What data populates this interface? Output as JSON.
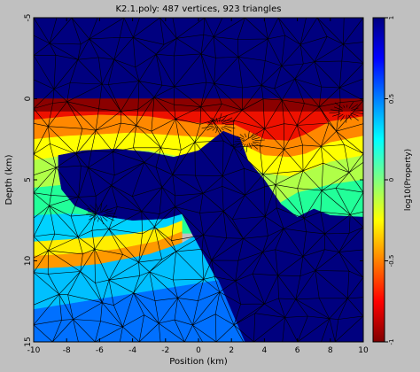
{
  "chart_data": {
    "type": "heatmap",
    "title": "K2.1.poly: 487 vertices, 923 triangles",
    "xlabel": "Position (km)",
    "ylabel": "Depth (km)",
    "xlim": [
      -10,
      10
    ],
    "ylim": [
      -5,
      15
    ],
    "y_inverted": true,
    "xticks": [
      -10,
      -8,
      -6,
      -4,
      -2,
      0,
      2,
      4,
      6,
      8,
      10
    ],
    "xtick_labels": [
      "-10",
      "-8",
      "-6",
      "-4",
      "-2",
      "0",
      "2",
      "4",
      "6",
      "8",
      "10"
    ],
    "yticks": [
      -5,
      0,
      5,
      10,
      15
    ],
    "ytick_labels": [
      "-5",
      "0",
      "5",
      "10",
      "15"
    ],
    "colorbar": {
      "label": "log10(Property)",
      "range": [
        -1,
        1
      ],
      "ticks": [
        1,
        0.5,
        0,
        -0.5,
        -1
      ],
      "tick_labels": [
        "1",
        "0.5",
        "0",
        "-0.5",
        "-1"
      ],
      "colormap": "jet"
    },
    "regions": [
      {
        "name": "upper-layer",
        "log10_value": 1.0,
        "color": "#00007f",
        "polygon": [
          [
            -10,
            -5
          ],
          [
            10,
            -5
          ],
          [
            10,
            0
          ],
          [
            -10,
            0
          ]
        ]
      },
      {
        "name": "surface-layer",
        "log10_value": -1.0,
        "color": "#8b0000",
        "polygon": [
          [
            -10,
            0
          ],
          [
            10,
            0
          ],
          [
            10,
            0.8
          ],
          [
            -10,
            0.8
          ]
        ]
      },
      {
        "name": "band-red",
        "log10_value": -0.85,
        "color": "#ee1100",
        "polygon": [
          [
            -10,
            0.8
          ],
          [
            10,
            0.8
          ],
          [
            10,
            1.1
          ],
          [
            8,
            1.4
          ],
          [
            6.5,
            2.2
          ],
          [
            5.5,
            2.6
          ],
          [
            4,
            2.5
          ],
          [
            3,
            2.0
          ],
          [
            2.2,
            1.6
          ],
          [
            1,
            1.6
          ],
          [
            -1,
            1.4
          ],
          [
            -3,
            1.1
          ],
          [
            -6,
            1.0
          ],
          [
            -8,
            1.1
          ],
          [
            -10,
            1.3
          ]
        ]
      },
      {
        "name": "band-orange",
        "log10_value": -0.6,
        "color": "#ff8800",
        "polygon": [
          [
            -10,
            1.3
          ],
          [
            -8,
            1.1
          ],
          [
            -6,
            1.0
          ],
          [
            -3,
            1.1
          ],
          [
            -1,
            1.4
          ],
          [
            1,
            1.6
          ],
          [
            2.2,
            1.6
          ],
          [
            3,
            2.0
          ],
          [
            4,
            2.5
          ],
          [
            5.5,
            2.6
          ],
          [
            6.5,
            2.2
          ],
          [
            8,
            1.4
          ],
          [
            10,
            1.1
          ],
          [
            10,
            2.3
          ],
          [
            8,
            2.7
          ],
          [
            6.5,
            3.4
          ],
          [
            5.5,
            3.6
          ],
          [
            4,
            3.5
          ],
          [
            3,
            3.0
          ],
          [
            2,
            2.6
          ],
          [
            1,
            2.4
          ],
          [
            -1,
            2.3
          ],
          [
            -4,
            2.1
          ],
          [
            -6,
            2.2
          ],
          [
            -8,
            2.3
          ],
          [
            -10,
            2.5
          ]
        ]
      },
      {
        "name": "band-yellow",
        "log10_value": -0.4,
        "color": "#ffff00",
        "polygon": [
          [
            -10,
            2.5
          ],
          [
            -8,
            2.3
          ],
          [
            -6,
            2.2
          ],
          [
            -4,
            2.1
          ],
          [
            -1,
            2.3
          ],
          [
            1,
            2.4
          ],
          [
            2,
            2.6
          ],
          [
            3,
            3.0
          ],
          [
            4,
            3.5
          ],
          [
            5.5,
            3.6
          ],
          [
            6.5,
            3.4
          ],
          [
            8,
            2.7
          ],
          [
            10,
            2.3
          ],
          [
            10,
            3.5
          ],
          [
            8,
            3.9
          ],
          [
            6.5,
            4.5
          ],
          [
            5.5,
            4.8
          ],
          [
            4,
            4.6
          ],
          [
            3,
            4.3
          ],
          [
            2,
            4.1
          ],
          [
            -1,
            3.6
          ],
          [
            -3,
            3.2
          ],
          [
            -6,
            3.2
          ],
          [
            -8,
            3.5
          ],
          [
            -10,
            3.8
          ]
        ]
      },
      {
        "name": "band-lightgreen",
        "log10_value": -0.2,
        "color": "#b0ff48",
        "polygon": [
          [
            -10,
            3.8
          ],
          [
            -8,
            3.5
          ],
          [
            -6,
            3.2
          ],
          [
            -3,
            3.2
          ],
          [
            -1,
            3.6
          ],
          [
            2,
            4.1
          ],
          [
            3,
            4.3
          ],
          [
            4,
            4.6
          ],
          [
            5.5,
            4.8
          ],
          [
            6.5,
            4.5
          ],
          [
            8,
            3.9
          ],
          [
            10,
            3.5
          ],
          [
            10,
            5.0
          ],
          [
            8,
            5.3
          ],
          [
            6,
            5.8
          ],
          [
            5,
            6.4
          ],
          [
            4,
            6.6
          ],
          [
            3,
            6.2
          ],
          [
            2,
            5.7
          ],
          [
            -1,
            5.2
          ],
          [
            -4,
            4.8
          ],
          [
            -6,
            5.0
          ],
          [
            -8,
            5.3
          ],
          [
            -10,
            5.5
          ]
        ]
      },
      {
        "name": "band-green",
        "log10_value": 0.15,
        "color": "#22ff99",
        "polygon": [
          [
            -10,
            5.5
          ],
          [
            -8,
            5.3
          ],
          [
            -6,
            5.0
          ],
          [
            -4,
            4.8
          ],
          [
            -1,
            5.2
          ],
          [
            2,
            5.7
          ],
          [
            3,
            6.2
          ],
          [
            4,
            6.6
          ],
          [
            5,
            6.4
          ],
          [
            6,
            5.8
          ],
          [
            8,
            5.3
          ],
          [
            10,
            5.0
          ],
          [
            10,
            8.3
          ],
          [
            -10,
            8.3
          ]
        ]
      },
      {
        "name": "deep-band-yellow",
        "log10_value": -0.35,
        "color": "#ffee00",
        "polygon": [
          [
            -10,
            8.8
          ],
          [
            -7,
            8.6
          ],
          [
            -4,
            8.3
          ],
          [
            -2,
            7.9
          ],
          [
            -1,
            7.5
          ],
          [
            -1,
            8.2
          ],
          [
            -2.5,
            8.8
          ],
          [
            -5,
            9.3
          ],
          [
            -8,
            9.6
          ],
          [
            -10,
            9.7
          ]
        ]
      },
      {
        "name": "deep-band-orange",
        "log10_value": -0.55,
        "color": "#ff9900",
        "polygon": [
          [
            -10,
            9.7
          ],
          [
            -8,
            9.6
          ],
          [
            -5,
            9.3
          ],
          [
            -2.5,
            8.8
          ],
          [
            -1,
            8.2
          ],
          [
            -1,
            8.9
          ],
          [
            -3,
            9.6
          ],
          [
            -6,
            10.2
          ],
          [
            -8,
            10.4
          ],
          [
            -10,
            10.5
          ]
        ]
      },
      {
        "name": "deep-band-cyan",
        "log10_value": 0.35,
        "color": "#00d2ff",
        "polygon": [
          [
            -10,
            7.2
          ],
          [
            -8,
            7.1
          ],
          [
            -6,
            7.2
          ],
          [
            -4,
            7.5
          ],
          [
            -2,
            7.4
          ],
          [
            -1,
            7.1
          ],
          [
            -1,
            7.5
          ],
          [
            -2,
            7.9
          ],
          [
            -4,
            8.3
          ],
          [
            -7,
            8.6
          ],
          [
            -10,
            8.8
          ]
        ]
      },
      {
        "name": "inner-body",
        "log10_value": 1.0,
        "color": "#00007f",
        "polygon": [
          [
            -8.5,
            3.5
          ],
          [
            -7,
            3.2
          ],
          [
            -5,
            3.1
          ],
          [
            -3,
            3.3
          ],
          [
            -1.5,
            3.6
          ],
          [
            0,
            3.2
          ],
          [
            1.5,
            2.0
          ],
          [
            2.5,
            2.4
          ],
          [
            3,
            3.8
          ],
          [
            4,
            5.0
          ],
          [
            5,
            6.5
          ],
          [
            6,
            7.3
          ],
          [
            7,
            6.8
          ],
          [
            8,
            7.2
          ],
          [
            10,
            7.3
          ],
          [
            10,
            15
          ],
          [
            2.8,
            15
          ],
          [
            1,
            11
          ],
          [
            -0.3,
            8.5
          ],
          [
            -1,
            7.1
          ],
          [
            -2,
            7.4
          ],
          [
            -4,
            7.5
          ],
          [
            -6,
            7.2
          ],
          [
            -7.5,
            6.6
          ],
          [
            -8.3,
            5.6
          ],
          [
            -8.5,
            4.5
          ]
        ]
      },
      {
        "name": "left-slope",
        "log10_value": 0.3,
        "color": "#00c0ff",
        "polygon": [
          [
            -10,
            10.5
          ],
          [
            -8,
            10.4
          ],
          [
            -6,
            10.2
          ],
          [
            -3,
            9.6
          ],
          [
            -1,
            8.9
          ],
          [
            -0.3,
            8.5
          ],
          [
            1,
            11
          ],
          [
            1.2,
            11.2
          ],
          [
            -10,
            13.0
          ]
        ]
      },
      {
        "name": "deep-layer",
        "log10_value": 0.5,
        "color": "#0070ff",
        "polygon": [
          [
            -10,
            13.0
          ],
          [
            1.2,
            11.2
          ],
          [
            2.8,
            15
          ],
          [
            -10,
            15
          ]
        ]
      }
    ]
  }
}
